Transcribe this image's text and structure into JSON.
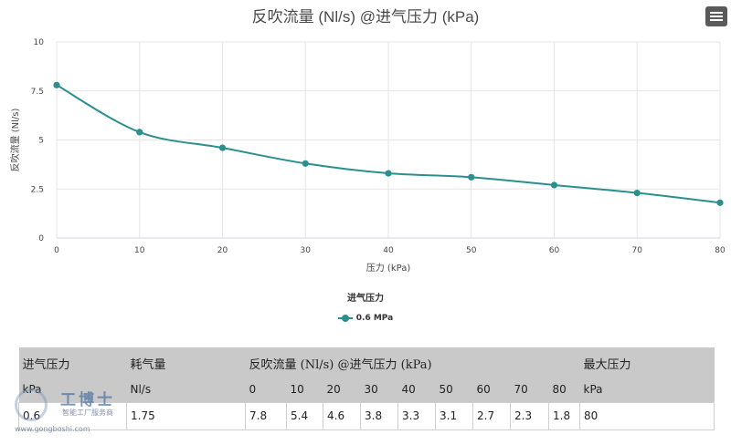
{
  "chart_data": {
    "type": "line",
    "title": "反吹流量 (Nl/s) @进气压力 (kPa)",
    "xlabel": "压力 (kPa)",
    "ylabel": "反吹流量 (Nl/s)",
    "x": [
      0,
      10,
      20,
      30,
      40,
      50,
      60,
      70,
      80
    ],
    "xlim": [
      0,
      80
    ],
    "ylim": [
      0,
      10
    ],
    "x_ticks": [
      "0",
      "10",
      "20",
      "30",
      "40",
      "50",
      "60",
      "70",
      "80"
    ],
    "y_ticks": [
      "0",
      "2.5",
      "5",
      "7.5",
      "10"
    ],
    "grid": true,
    "legend_title": "进气压力",
    "legend_position": "bottom-center",
    "series": [
      {
        "name": "0.6 MPa",
        "color": "#2b8f8f",
        "values": [
          7.8,
          5.4,
          4.6,
          3.8,
          3.3,
          3.1,
          2.7,
          2.3,
          1.8
        ]
      }
    ]
  },
  "ui": {
    "menu_icon": "hamburger-icon"
  },
  "spec_table": {
    "header_row1": [
      "进气压力",
      "耗气量",
      "反吹流量 (Nl/s) @进气压力 (kPa)",
      "最大压力"
    ],
    "header_row2": [
      "kPa",
      "Nl/s",
      "0",
      "10",
      "20",
      "30",
      "40",
      "50",
      "60",
      "70",
      "80",
      "kPa"
    ],
    "data_row": [
      "0.6",
      "1.75",
      "7.8",
      "5.4",
      "4.6",
      "3.8",
      "3.3",
      "3.1",
      "2.7",
      "2.3",
      "1.8",
      "80"
    ]
  },
  "watermark": {
    "name": "工博士",
    "subtitle": "智能工厂服务商",
    "url": "www.gongboshi.com"
  }
}
